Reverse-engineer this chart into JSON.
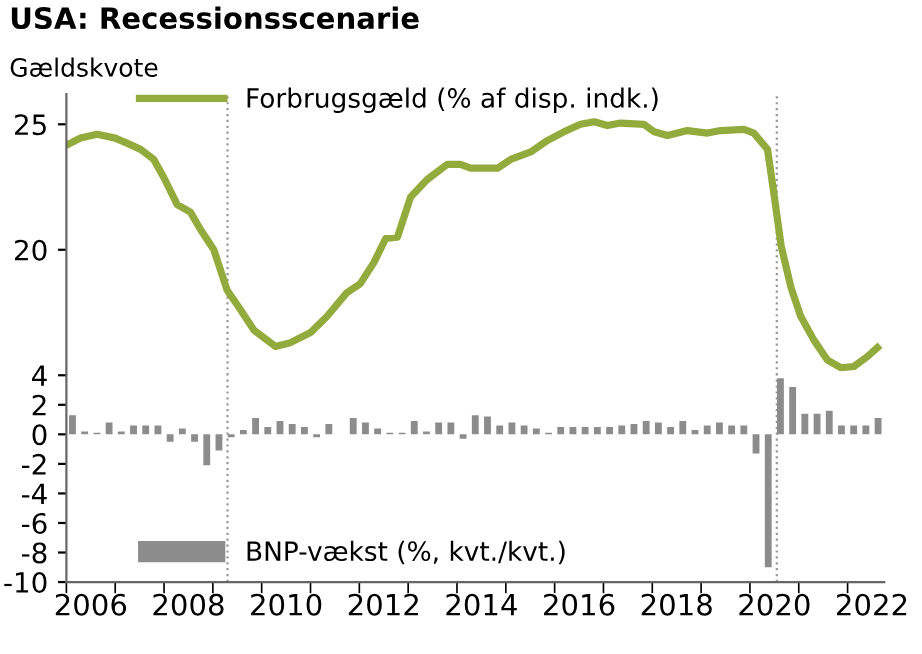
{
  "chart_data": [
    {
      "type": "line",
      "title": "USA: Recessionsscenarie",
      "ylabel": "Gældskvote",
      "series": [
        {
          "name": "Forbrugsgæld (% af disp. indk.)",
          "color": "#93ab3c",
          "x": [
            2006.03,
            2006.29,
            2006.63,
            2007.0,
            2007.24,
            2007.52,
            2007.79,
            2007.99,
            2008.27,
            2008.54,
            2008.75,
            2009.02,
            2009.29,
            2009.57,
            2009.84,
            2010.28,
            2010.59,
            2011.0,
            2011.34,
            2011.75,
            2012.02,
            2012.3,
            2012.54,
            2012.78,
            2013.05,
            2013.39,
            2013.8,
            2014.07,
            2014.28,
            2014.83,
            2015.1,
            2015.51,
            2015.85,
            2016.19,
            2016.53,
            2016.81,
            2017.08,
            2017.35,
            2017.83,
            2018.04,
            2018.31,
            2018.72,
            2019.13,
            2019.4,
            2019.88,
            2020.08,
            2020.36,
            2020.49,
            2020.64,
            2020.84,
            2021.04,
            2021.31,
            2021.59,
            2021.86,
            2022.13,
            2022.41,
            2022.61
          ],
          "values": [
            24.2,
            24.45,
            24.6,
            24.45,
            24.25,
            24.0,
            23.6,
            22.9,
            21.8,
            21.5,
            20.8,
            20.0,
            18.4,
            17.6,
            16.8,
            16.15,
            16.3,
            16.7,
            17.35,
            18.3,
            18.65,
            19.5,
            20.45,
            20.5,
            22.1,
            22.8,
            23.4,
            23.4,
            23.25,
            23.25,
            23.6,
            23.9,
            24.35,
            24.7,
            25.0,
            25.1,
            24.95,
            25.05,
            25.0,
            24.7,
            24.55,
            24.75,
            24.65,
            24.75,
            24.8,
            24.65,
            24.0,
            22.25,
            20.15,
            18.5,
            17.35,
            16.4,
            15.6,
            15.3,
            15.35,
            15.75,
            16.1
          ]
        }
      ],
      "xlim": [
        2006,
        2022.75
      ],
      "ylim": [
        15,
        26.2
      ],
      "yticks": [
        20,
        25
      ],
      "tick_labels": "y",
      "legend": "top left",
      "line_style": "solid",
      "marker": "none",
      "grid": false,
      "ref_lines": [
        {
          "axis": "x",
          "value": 2009.3,
          "color": "#999999",
          "line_style": "dotted"
        },
        {
          "axis": "x",
          "value": 2020.55,
          "color": "#999999",
          "line_style": "dotted"
        }
      ]
    },
    {
      "type": "bar",
      "series": [
        {
          "name": "BNP-vækst (%, kvt./kvt.)",
          "color": "#8c8c8c",
          "x": [
            2006.125,
            2006.375,
            2006.625,
            2006.875,
            2007.125,
            2007.375,
            2007.625,
            2007.875,
            2008.125,
            2008.375,
            2008.625,
            2008.875,
            2009.125,
            2009.375,
            2009.625,
            2009.875,
            2010.125,
            2010.375,
            2010.625,
            2010.875,
            2011.125,
            2011.375,
            2011.625,
            2011.875,
            2012.125,
            2012.375,
            2012.625,
            2012.875,
            2013.125,
            2013.375,
            2013.625,
            2013.875,
            2014.125,
            2014.375,
            2014.625,
            2014.875,
            2015.125,
            2015.375,
            2015.625,
            2015.875,
            2016.125,
            2016.375,
            2016.625,
            2016.875,
            2017.125,
            2017.375,
            2017.625,
            2017.875,
            2018.125,
            2018.375,
            2018.625,
            2018.875,
            2019.125,
            2019.375,
            2019.625,
            2019.875,
            2020.125,
            2020.375,
            2020.625,
            2020.875,
            2021.125,
            2021.375,
            2021.625,
            2021.875,
            2022.125,
            2022.375,
            2022.625
          ],
          "values": [
            1.3,
            0.2,
            0.1,
            0.8,
            0.2,
            0.6,
            0.6,
            0.6,
            -0.5,
            0.4,
            -0.5,
            -2.1,
            -1.1,
            -0.2,
            0.3,
            1.1,
            0.5,
            0.9,
            0.7,
            0.5,
            -0.2,
            0.7,
            0.0,
            1.1,
            0.8,
            0.4,
            0.1,
            0.1,
            0.9,
            0.2,
            0.8,
            0.8,
            -0.3,
            1.3,
            1.2,
            0.6,
            0.8,
            0.6,
            0.4,
            0.1,
            0.5,
            0.5,
            0.5,
            0.5,
            0.5,
            0.6,
            0.7,
            0.9,
            0.8,
            0.5,
            0.9,
            0.3,
            0.6,
            0.8,
            0.6,
            0.6,
            -1.3,
            -9.0,
            3.8,
            3.2,
            1.4,
            1.4,
            1.6,
            0.6,
            0.6,
            0.6,
            1.1
          ]
        }
      ],
      "xlim": [
        2006,
        2022.75
      ],
      "ylim": [
        -10,
        4
      ],
      "yticks": [
        -10,
        -8,
        -6,
        -4,
        -2,
        0,
        2,
        4
      ],
      "xticks": [
        {
          "value": 2006,
          "label": null
        },
        {
          "value": 2006.5,
          "label": "2006"
        },
        {
          "value": 2007,
          "label": null
        },
        {
          "value": 2008,
          "label": null
        },
        {
          "value": 2008.5,
          "label": "2008"
        },
        {
          "value": 2009,
          "label": null
        },
        {
          "value": 2010,
          "label": null
        },
        {
          "value": 2010.5,
          "label": "2010"
        },
        {
          "value": 2011,
          "label": null
        },
        {
          "value": 2012,
          "label": null
        },
        {
          "value": 2012.5,
          "label": "2012"
        },
        {
          "value": 2013,
          "label": null
        },
        {
          "value": 2014,
          "label": null
        },
        {
          "value": 2014.5,
          "label": "2014"
        },
        {
          "value": 2015,
          "label": null
        },
        {
          "value": 2016,
          "label": null
        },
        {
          "value": 2016.5,
          "label": "2016"
        },
        {
          "value": 2017,
          "label": null
        },
        {
          "value": 2018,
          "label": null
        },
        {
          "value": 2018.5,
          "label": "2018"
        },
        {
          "value": 2019,
          "label": null
        },
        {
          "value": 2020,
          "label": null
        },
        {
          "value": 2020.5,
          "label": "2020"
        },
        {
          "value": 2021,
          "label": null
        },
        {
          "value": 2022,
          "label": null
        },
        {
          "value": 2022.5,
          "label": "2022"
        }
      ],
      "legend": "bottom left",
      "grid": false,
      "ref_lines": [
        {
          "axis": "x",
          "value": 2009.3,
          "color": "#999999",
          "line_style": "dotted"
        },
        {
          "axis": "x",
          "value": 2020.55,
          "color": "#999999",
          "line_style": "dotted"
        }
      ]
    }
  ]
}
